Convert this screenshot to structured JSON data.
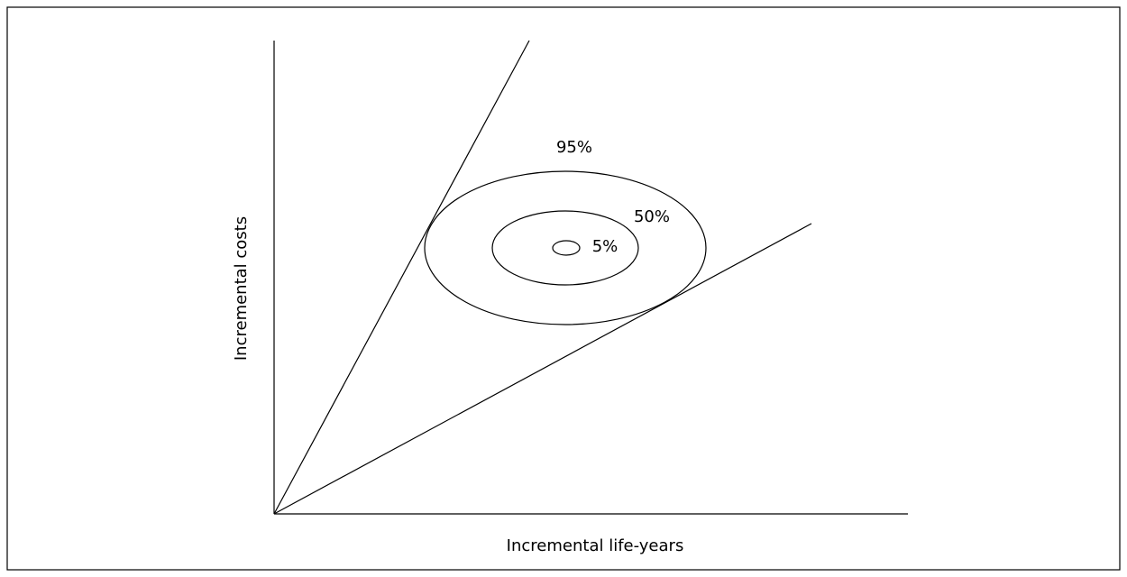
{
  "diagram": {
    "x_axis_label": "Incremental life-years",
    "y_axis_label": "Incremental costs",
    "contours": [
      {
        "label": "95%"
      },
      {
        "label": "50%"
      },
      {
        "label": "5%"
      }
    ]
  }
}
